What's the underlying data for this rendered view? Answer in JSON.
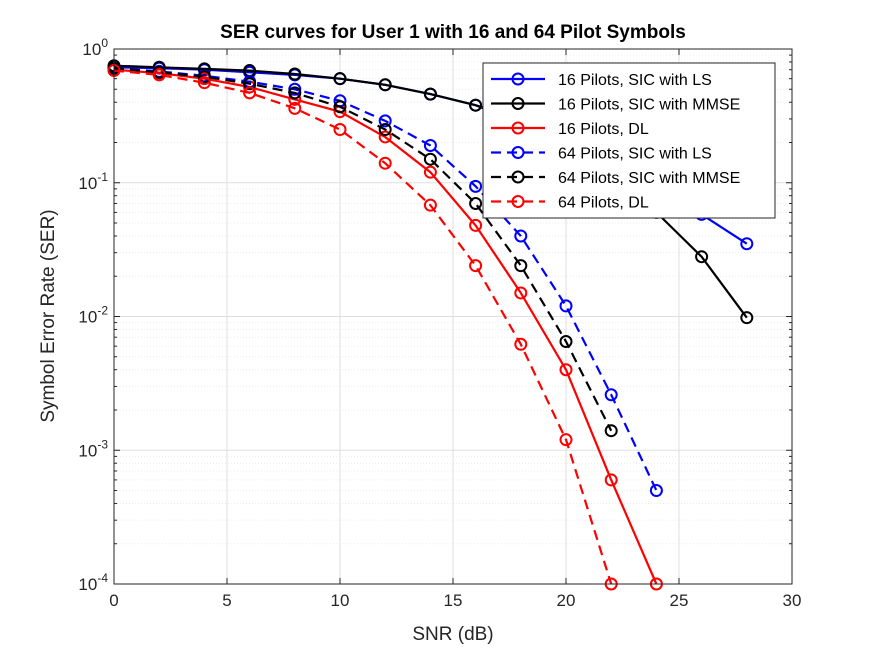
{
  "chart_data": {
    "type": "line",
    "title": "SER curves for User 1 with 16 and 64 Pilot Symbols",
    "xlabel": "SNR (dB)",
    "ylabel": "Symbol Error Rate (SER)",
    "xlim": [
      0,
      30
    ],
    "ylim": [
      0.0001,
      1
    ],
    "yscale": "log",
    "xticks": [
      0,
      5,
      10,
      15,
      20,
      25,
      30
    ],
    "yticks": [
      {
        "value": 1,
        "base": "10",
        "exp": "0"
      },
      {
        "value": 0.1,
        "base": "10",
        "exp": "-1"
      },
      {
        "value": 0.01,
        "base": "10",
        "exp": "-2"
      },
      {
        "value": 0.001,
        "base": "10",
        "exp": "-3"
      },
      {
        "value": 0.0001,
        "base": "10",
        "exp": "-4"
      }
    ],
    "grid": true,
    "legend_position": "top-right",
    "series": [
      {
        "name": "16 Pilots, SIC with LS",
        "color": "#0000ff",
        "dash": "solid",
        "marker": "circle",
        "x": [
          0,
          2,
          4,
          6,
          8,
          10,
          12,
          14,
          16,
          18,
          20,
          22,
          24,
          26,
          28
        ],
        "y": [
          0.73,
          0.72,
          0.7,
          0.67,
          0.64,
          0.6,
          0.54,
          0.46,
          0.38,
          0.3,
          0.22,
          0.15,
          0.094,
          0.058,
          0.035
        ]
      },
      {
        "name": "16 Pilots, SIC with MMSE",
        "color": "#000000",
        "dash": "solid",
        "marker": "circle",
        "x": [
          0,
          2,
          4,
          6,
          8,
          10,
          12,
          14,
          16,
          18,
          20,
          22,
          24,
          26,
          28
        ],
        "y": [
          0.75,
          0.73,
          0.71,
          0.69,
          0.65,
          0.6,
          0.54,
          0.46,
          0.38,
          0.28,
          0.18,
          0.11,
          0.06,
          0.028,
          0.0098
        ]
      },
      {
        "name": "16 Pilots, DL",
        "color": "#ff0000",
        "dash": "solid",
        "marker": "circle",
        "x": [
          0,
          2,
          4,
          6,
          8,
          10,
          12,
          14,
          16,
          18,
          20,
          22,
          24
        ],
        "y": [
          0.7,
          0.66,
          0.6,
          0.52,
          0.42,
          0.34,
          0.22,
          0.12,
          0.048,
          0.015,
          0.004,
          0.0006,
          0.0001
        ]
      },
      {
        "name": "64 Pilots, SIC with LS",
        "color": "#0000ff",
        "dash": "dashed",
        "marker": "circle",
        "x": [
          0,
          2,
          4,
          6,
          8,
          10,
          12,
          14,
          16,
          18,
          20,
          22,
          24
        ],
        "y": [
          0.72,
          0.68,
          0.63,
          0.57,
          0.5,
          0.41,
          0.29,
          0.19,
          0.094,
          0.04,
          0.012,
          0.0026,
          0.0005
        ]
      },
      {
        "name": "64 Pilots, SIC with MMSE",
        "color": "#000000",
        "dash": "dashed",
        "marker": "circle",
        "x": [
          0,
          2,
          4,
          6,
          8,
          10,
          12,
          14,
          16,
          18,
          20,
          22
        ],
        "y": [
          0.72,
          0.67,
          0.62,
          0.55,
          0.47,
          0.37,
          0.25,
          0.15,
          0.07,
          0.024,
          0.0065,
          0.0014
        ]
      },
      {
        "name": "64 Pilots, DL",
        "color": "#ff0000",
        "dash": "dashed",
        "marker": "circle",
        "x": [
          0,
          2,
          4,
          6,
          8,
          10,
          12,
          14,
          16,
          18,
          20,
          22
        ],
        "y": [
          0.69,
          0.64,
          0.56,
          0.47,
          0.36,
          0.25,
          0.14,
          0.068,
          0.024,
          0.0062,
          0.0012,
          0.0001
        ]
      }
    ]
  }
}
